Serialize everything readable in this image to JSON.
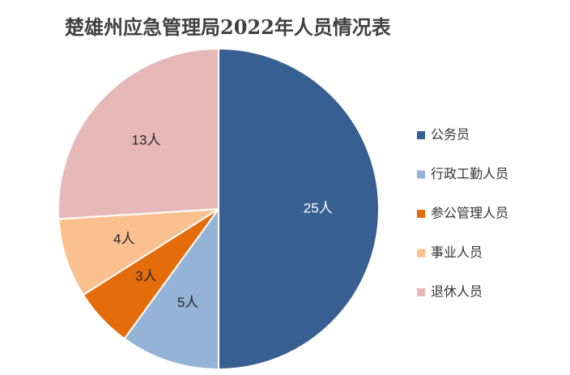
{
  "chart_data": {
    "type": "pie",
    "title": "楚雄州应急管理局2022年人员情况表",
    "categories": [
      "公务员",
      "行政工勤人员",
      "参公管理人员",
      "事业人员",
      "退休人员"
    ],
    "values": [
      25,
      5,
      3,
      4,
      13
    ],
    "value_labels": [
      "25人",
      "5人",
      "3人",
      "4人",
      "13人"
    ],
    "colors": [
      "#375f91",
      "#95b3d7",
      "#e46c0a",
      "#fac090",
      "#e6b9b8"
    ],
    "legend": "right"
  }
}
